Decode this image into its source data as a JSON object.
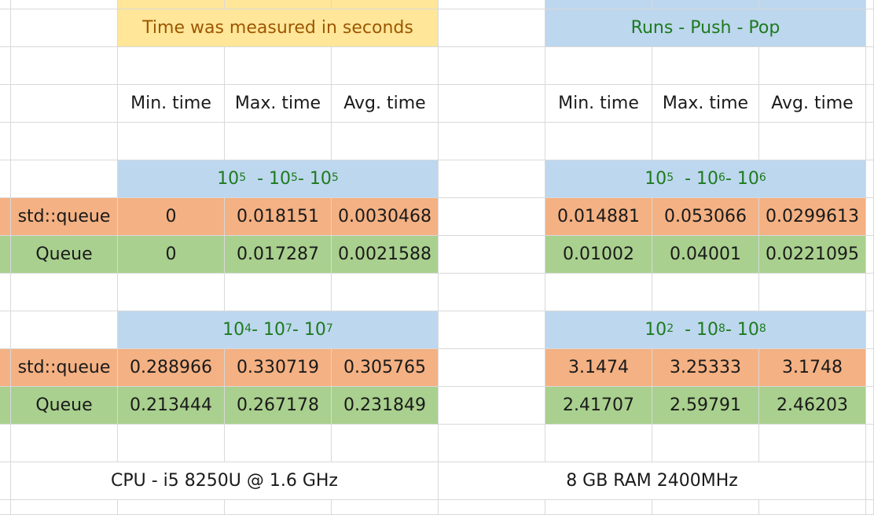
{
  "banner_left": "Time was measured in seconds",
  "banner_right": "Runs - Push - Pop",
  "headers": [
    "Min. time",
    "Max. time",
    "Avg. time"
  ],
  "row_labels": {
    "std": "std::queue",
    "queue": "Queue"
  },
  "group1": {
    "title_sups": [
      "5",
      "5",
      "5"
    ],
    "std": [
      "0",
      "0.018151",
      "0.0030468"
    ],
    "queue": [
      "0",
      "0.017287",
      "0.0021588"
    ]
  },
  "group2": {
    "title_sups": [
      "5",
      "6",
      "6"
    ],
    "std": [
      "0.014881",
      "0.053066",
      "0.0299613"
    ],
    "queue": [
      "0.01002",
      "0.04001",
      "0.0221095"
    ]
  },
  "group3": {
    "title_sups": [
      "4",
      "7",
      "7"
    ],
    "std": [
      "0.288966",
      "0.330719",
      "0.305765"
    ],
    "queue": [
      "0.213444",
      "0.267178",
      "0.231849"
    ]
  },
  "group4": {
    "title_sups": [
      "2",
      "8",
      "8"
    ],
    "std": [
      "3.1474",
      "3.25333",
      "3.1748"
    ],
    "queue": [
      "2.41707",
      "2.59791",
      "2.46203"
    ]
  },
  "footer_left": "CPU - i5 8250U @ 1.6 GHz",
  "footer_right": "8 GB RAM 2400MHz",
  "colors": {
    "yellow_fill": "#ffe699",
    "blue_fill": "#bdd7ee",
    "orange_fill": "#f4b183",
    "green_fill": "#a9d08e",
    "title_green": "#1e7a1e",
    "banner_brown": "#9c5700"
  }
}
